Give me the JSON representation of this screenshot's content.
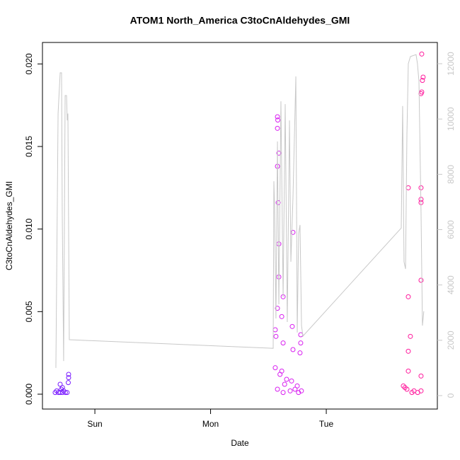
{
  "chart_data": {
    "type": "scatter",
    "title": "ATOM1 North_America C3toCnAldehydes_GMI",
    "xlabel": "Date",
    "ylabel": "C3toCnAldehydes_GMI",
    "xlim": [
      0.547,
      3.96
    ],
    "xticks": [
      {
        "value": 1,
        "label": "Sun"
      },
      {
        "value": 2,
        "label": "Mon"
      },
      {
        "value": 3,
        "label": "Tue"
      }
    ],
    "ylim": [
      -0.0009,
      0.0213
    ],
    "yticks": [
      {
        "value": 0,
        "label": "0.000"
      },
      {
        "value": 0.005,
        "label": "0.005"
      },
      {
        "value": 0.01,
        "label": "0.010"
      },
      {
        "value": 0.015,
        "label": "0.015"
      },
      {
        "value": 0.02,
        "label": "0.020"
      }
    ],
    "y2lim": [
      -486,
      12768
    ],
    "y2ticks": [
      0,
      2000,
      4000,
      6000,
      8000,
      10000,
      12000
    ],
    "y2color": "#c8c8c8",
    "series": [
      {
        "type": "scatter",
        "color": "#7a1cff",
        "x": [
          0.657,
          0.67,
          0.685,
          0.7,
          0.71,
          0.72,
          0.73,
          0.745,
          0.76,
          0.773,
          0.773,
          0.77,
          0.7,
          0.72
        ],
        "values": [
          0.0001,
          0.0002,
          0.0001,
          0.0001,
          0.0003,
          0.0001,
          0.0002,
          0.0001,
          0.0001,
          0.0012,
          0.001,
          0.0007,
          0.0006,
          0.0004
        ]
      },
      {
        "type": "scatter",
        "color": "#d81ff0",
        "x": [
          2.578,
          2.581,
          2.578,
          2.59,
          2.578,
          2.584,
          2.59,
          2.59,
          2.627,
          2.578,
          2.615,
          2.712,
          2.706,
          2.559,
          2.565,
          2.627,
          2.779,
          2.779,
          2.773,
          2.712,
          2.559,
          2.615,
          2.657,
          2.749,
          2.578,
          2.688,
          2.785,
          2.627,
          2.6,
          2.64,
          2.7,
          2.73,
          2.76
        ],
        "values": [
          0.0168,
          0.0166,
          0.0161,
          0.0146,
          0.0138,
          0.0116,
          0.0091,
          0.0071,
          0.0059,
          0.0052,
          0.0047,
          0.0098,
          0.0041,
          0.0039,
          0.0035,
          0.0031,
          0.0036,
          0.0031,
          0.0025,
          0.0027,
          0.0016,
          0.0014,
          0.0009,
          0.0005,
          0.0003,
          0.0002,
          0.0002,
          0.0001,
          0.0012,
          0.0006,
          0.0008,
          0.0003,
          0.0001
        ]
      },
      {
        "type": "scatter",
        "color": "#ff1a9c",
        "x": [
          3.825,
          3.837,
          3.831,
          3.825,
          3.819,
          3.709,
          3.819,
          3.819,
          3.819,
          3.819,
          3.709,
          3.727,
          3.709,
          3.709,
          3.819,
          3.666,
          3.697,
          3.758,
          3.819,
          3.68,
          3.74,
          3.79
        ],
        "values": [
          0.0206,
          0.0192,
          0.019,
          0.0183,
          0.0182,
          0.0125,
          0.0125,
          0.0118,
          0.0116,
          0.0069,
          0.0059,
          0.0035,
          0.0026,
          0.0014,
          0.0011,
          0.0005,
          0.0003,
          0.0002,
          0.0002,
          0.0004,
          0.0001,
          0.0001
        ]
      },
      {
        "type": "line",
        "axis": "y2",
        "color": "#c8c8c8",
        "x": [
          0.663,
          0.682,
          0.7,
          0.712,
          0.718,
          0.73,
          0.743,
          0.755,
          0.761,
          0.767,
          0.779,
          2.541,
          2.547,
          2.553,
          2.565,
          2.578,
          2.59,
          2.608,
          2.627,
          2.645,
          2.663,
          2.682,
          2.694,
          2.712,
          2.737,
          2.749,
          2.761,
          2.773,
          2.786,
          2.798,
          3.648,
          3.66,
          3.672,
          3.685,
          3.697,
          3.709,
          3.727,
          3.776,
          3.788,
          3.801,
          3.819,
          3.831,
          3.843
        ],
        "values": [
          1000,
          10200,
          11670,
          11670,
          6630,
          1250,
          10850,
          10850,
          9950,
          10200,
          2020,
          1710,
          7750,
          6880,
          2790,
          9190,
          3300,
          10640,
          3560,
          10540,
          2660,
          9950,
          4840,
          7140,
          11540,
          2280,
          5860,
          6170,
          2530,
          2150,
          6060,
          10470,
          4840,
          4580,
          9440,
          12000,
          12260,
          12330,
          12000,
          11360,
          6630,
          2530,
          3050
        ]
      }
    ]
  }
}
